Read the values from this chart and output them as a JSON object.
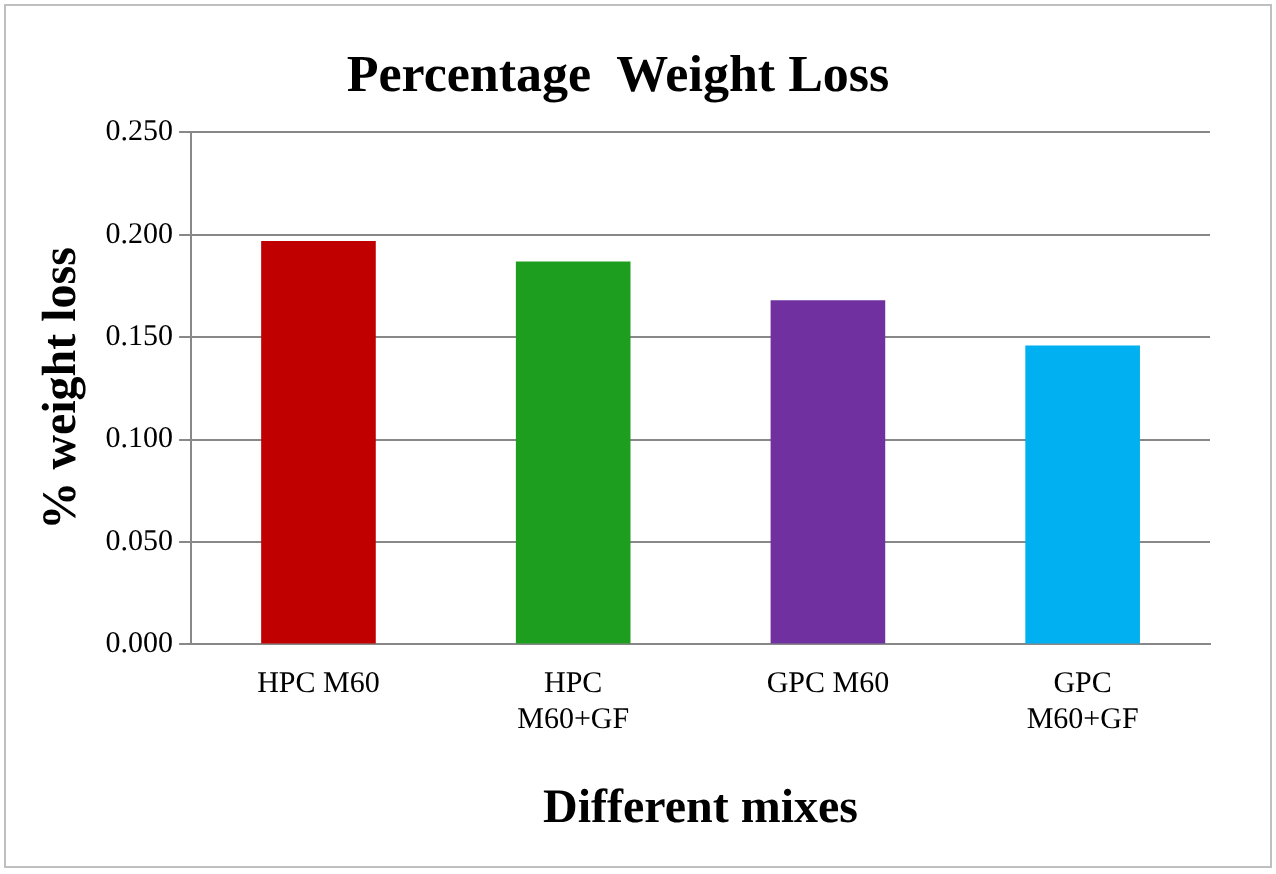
{
  "chart_data": {
    "type": "bar",
    "title": "Percentage  Weight Loss",
    "xlabel": "Different mixes",
    "ylabel": "% weight loss",
    "categories": [
      "HPC M60",
      "HPC M60+GF",
      "GPC M60",
      "GPC M60+GF"
    ],
    "values": [
      0.197,
      0.187,
      0.168,
      0.146
    ],
    "colors": [
      "#c00000",
      "#1e9e1e",
      "#7030a0",
      "#00b0f0"
    ],
    "ylim": [
      0,
      0.25
    ],
    "yticks": [
      {
        "value": 0,
        "label": "0.000"
      },
      {
        "value": 0.05,
        "label": "0.050"
      },
      {
        "value": 0.1,
        "label": "0.100"
      },
      {
        "value": 0.15,
        "label": "0.150"
      },
      {
        "value": 0.2,
        "label": "0.200"
      },
      {
        "value": 0.25,
        "label": "0.250"
      }
    ],
    "grid": "y",
    "legend": false
  }
}
